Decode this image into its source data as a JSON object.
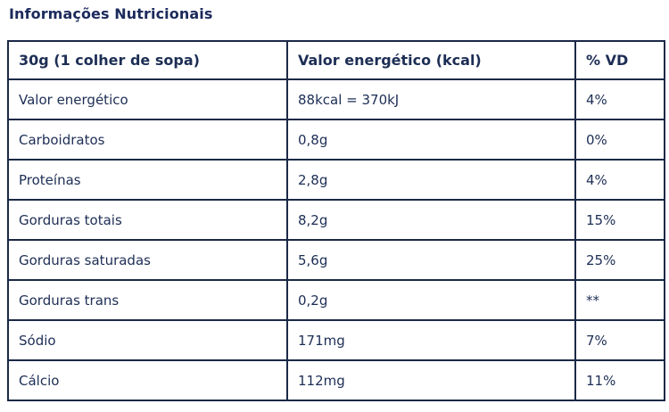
{
  "page": {
    "title": "Informações Nutricionais"
  },
  "table": {
    "headers": [
      "30g (1 colher de sopa)",
      "Valor energético (kcal)",
      "% VD"
    ],
    "rows": [
      {
        "label": "Valor energético",
        "value": "88kcal = 370kJ",
        "vd": "4%"
      },
      {
        "label": "Carboidratos",
        "value": "0,8g",
        "vd": "0%"
      },
      {
        "label": "Proteínas",
        "value": "2,8g",
        "vd": "4%"
      },
      {
        "label": "Gorduras totais",
        "value": "8,2g",
        "vd": "15%"
      },
      {
        "label": "Gorduras saturadas",
        "value": "5,6g",
        "vd": "25%"
      },
      {
        "label": "Gorduras trans",
        "value": "0,2g",
        "vd": "**"
      },
      {
        "label": "Sódio",
        "value": "171mg",
        "vd": "7%"
      },
      {
        "label": "Cálcio",
        "value": "112mg",
        "vd": "11%"
      }
    ]
  },
  "colors": {
    "text": "#1d2e55",
    "border": "#1b2946",
    "title": "#1c2a5c",
    "bg": "#ffffff"
  }
}
